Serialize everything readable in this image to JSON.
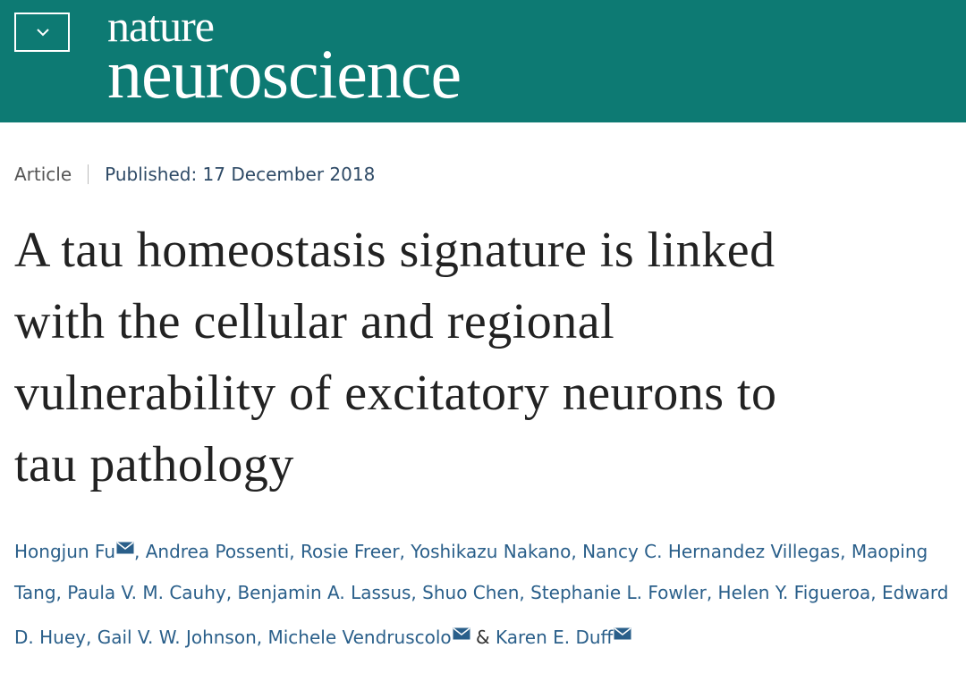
{
  "header": {
    "brand_top": "nature",
    "brand_bottom": "neuroscience"
  },
  "meta": {
    "type": "Article",
    "published": "Published: 17 December 2018"
  },
  "title": {
    "lines": [
      "A tau homeostasis signature is linked",
      "with the cellular and regional",
      "vulnerability of excitatory neurons to",
      "tau pathology"
    ]
  },
  "authors": [
    {
      "name": "Hongjun Fu",
      "corresponding": true,
      "after": ","
    },
    {
      "name": "Andrea Possenti",
      "corresponding": false,
      "after": ","
    },
    {
      "name": "Rosie Freer",
      "corresponding": false,
      "after": ","
    },
    {
      "name": "Yoshikazu Nakano",
      "corresponding": false,
      "after": ","
    },
    {
      "name": "Nancy C. Hernandez Villegas",
      "corresponding": false,
      "after": ","
    },
    {
      "name": "Maoping Tang",
      "corresponding": false,
      "after": ","
    },
    {
      "name": "Paula V. M. Cauhy",
      "corresponding": false,
      "after": ","
    },
    {
      "name": "Benjamin A. Lassus",
      "corresponding": false,
      "after": ","
    },
    {
      "name": "Shuo Chen",
      "corresponding": false,
      "after": ","
    },
    {
      "name": "Stephanie L. Fowler",
      "corresponding": false,
      "after": ","
    },
    {
      "name": "Helen Y. Figueroa",
      "corresponding": false,
      "after": ","
    },
    {
      "name": "Edward D. Huey",
      "corresponding": false,
      "after": ","
    },
    {
      "name": "Gail V. W. Johnson",
      "corresponding": false,
      "after": ","
    },
    {
      "name": "Michele Vendruscolo",
      "corresponding": true,
      "after": "&"
    },
    {
      "name": "Karen E. Duff",
      "corresponding": true
    }
  ]
}
